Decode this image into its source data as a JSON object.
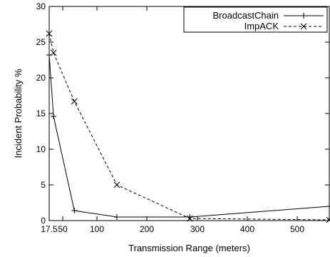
{
  "chart_data": {
    "type": "line",
    "title": "",
    "xlabel": "Transmission Range (meters)",
    "ylabel": "Incident Probability %",
    "xlim": [
      17.5,
      565
    ],
    "ylim": [
      0,
      30
    ],
    "x_ticks": [
      {
        "value": 17.5,
        "label": "17.5"
      },
      {
        "value": 50,
        "label": "50"
      },
      {
        "value": 100,
        "label": "100"
      },
      {
        "value": 200,
        "label": "200"
      },
      {
        "value": 300,
        "label": "300"
      },
      {
        "value": 400,
        "label": "400"
      },
      {
        "value": 500,
        "label": "500"
      }
    ],
    "y_ticks": [
      0,
      5,
      10,
      15,
      20,
      25,
      30
    ],
    "grid": false,
    "legend": {
      "placement": "top-right"
    },
    "series": [
      {
        "name": "BroadcastChain",
        "line": "solid",
        "marker": "plus",
        "color": "#000000",
        "points": [
          {
            "x": 17.5,
            "y": 23.2
          },
          {
            "x": 28,
            "y": 14.6
          },
          {
            "x": 67,
            "y": 1.4
          },
          {
            "x": 140,
            "y": 0.5
          },
          {
            "x": 285,
            "y": 0.5
          },
          {
            "x": 565,
            "y": 2.0
          }
        ]
      },
      {
        "name": "ImpACK",
        "line": "dashed",
        "marker": "cross",
        "color": "#000000",
        "points": [
          {
            "x": 17.5,
            "y": 26.2
          },
          {
            "x": 28,
            "y": 23.5
          },
          {
            "x": 67,
            "y": 16.7
          },
          {
            "x": 140,
            "y": 5.0
          },
          {
            "x": 285,
            "y": 0.3
          },
          {
            "x": 565,
            "y": 0.1
          }
        ]
      }
    ]
  }
}
